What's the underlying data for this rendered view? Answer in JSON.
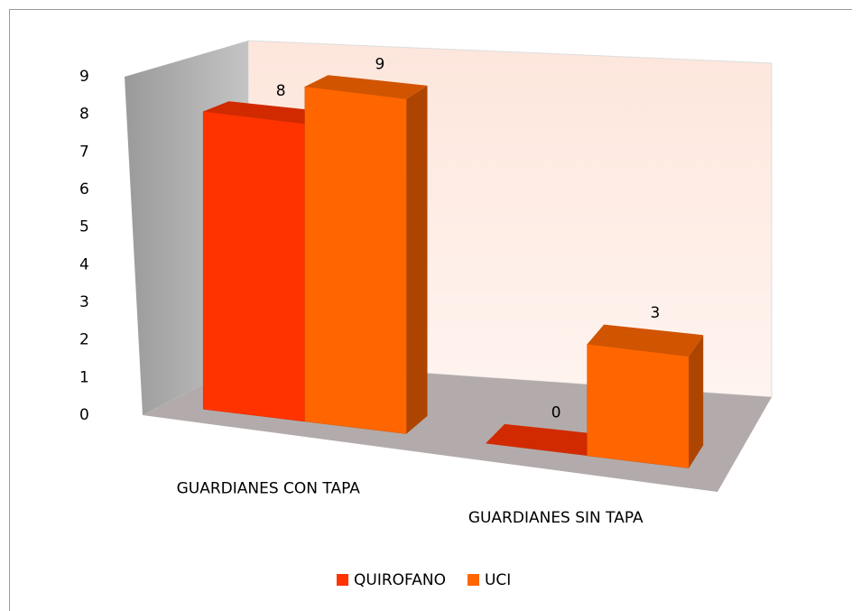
{
  "chart_data": {
    "type": "bar3d",
    "categories": [
      "GUARDIANES CON TAPA",
      "GUARDIANES SIN TAPA"
    ],
    "series": [
      {
        "name": "QUIROFANO",
        "color": "#ff3300",
        "values": [
          8,
          0
        ]
      },
      {
        "name": "UCI",
        "color": "#ff6600",
        "values": [
          9,
          3
        ]
      }
    ],
    "ylim": [
      0,
      9
    ],
    "yticks": [
      0,
      1,
      2,
      3,
      4,
      5,
      6,
      7,
      8,
      9
    ],
    "grid": false,
    "legend": "bottom"
  }
}
